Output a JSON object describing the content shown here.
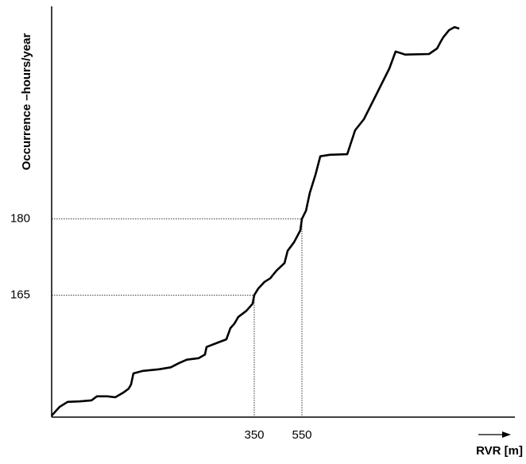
{
  "chart_data": {
    "type": "line",
    "y_label": "Occurrence –hours/year",
    "x_label": "RVR [m]",
    "x": [
      -500,
      -467,
      -433,
      -383,
      -333,
      -310,
      -267,
      -233,
      -200,
      -177,
      -167,
      -157,
      -117,
      -50,
      0,
      33,
      67,
      117,
      143,
      150,
      200,
      233,
      250,
      267,
      283,
      317,
      343,
      350,
      367,
      393,
      417,
      443,
      477,
      490,
      517,
      543,
      550,
      567,
      583,
      607,
      627,
      667,
      740,
      773,
      810,
      867,
      917,
      943,
      983,
      1083,
      1117,
      1133,
      1143,
      1167,
      1190,
      1210
    ],
    "series": [
      {
        "color": "#000000",
        "values": [
          141.3,
          143.0,
          144.0,
          144.1,
          144.3,
          145.1,
          145.1,
          144.9,
          145.8,
          146.6,
          147.4,
          149.6,
          150.1,
          150.4,
          150.8,
          151.6,
          152.3,
          152.6,
          153.3,
          154.8,
          155.7,
          156.3,
          158.5,
          159.4,
          160.7,
          161.9,
          163.3,
          165,
          166.3,
          167.6,
          168.3,
          169.8,
          171.3,
          173.7,
          175.4,
          177.7,
          180,
          181.6,
          185.1,
          188.7,
          192.3,
          192.6,
          192.7,
          197.4,
          199.6,
          204.9,
          209.6,
          212.9,
          212.3,
          212.4,
          213.5,
          214.9,
          215.7,
          217.1,
          217.7,
          217.4
        ]
      }
    ],
    "xlim": [
      -500,
      1400
    ],
    "ylim": [
      141,
      222
    ],
    "xticks": [
      350,
      550
    ],
    "yticks": [
      165,
      180
    ],
    "guide_lines": true
  }
}
